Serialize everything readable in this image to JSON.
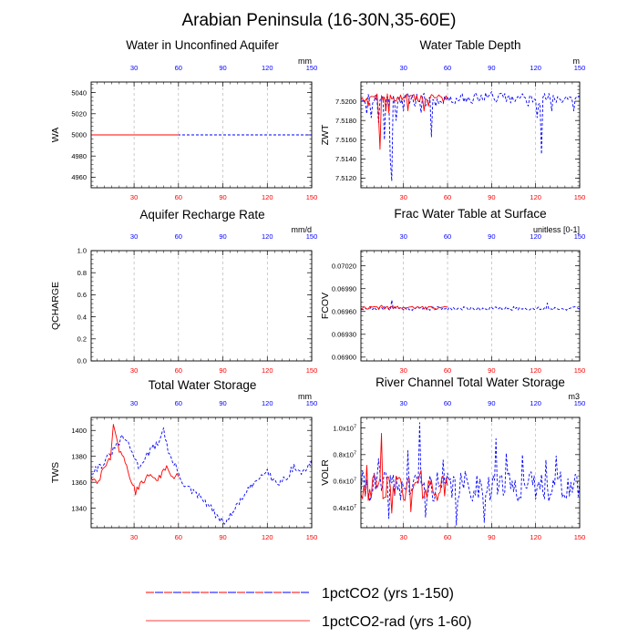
{
  "figure": {
    "title": "Arabian Peninsula (16-30N,35-60E)",
    "colors": {
      "series_a": "#0000ff",
      "series_b": "#ff0000",
      "grid": "#aaaaaa"
    }
  },
  "legend": {
    "items": [
      {
        "label": "1pctCO2 (yrs 1-150)",
        "style": "dashed-red-blue"
      },
      {
        "label": "1pctCO2-rad (yrs 1-60)",
        "style": "solid-red"
      }
    ]
  },
  "chart_data": [
    {
      "type": "line",
      "title": "Water in Unconfined Aquifer",
      "ylabel": "WA",
      "unit": "mm",
      "xlim": [
        1,
        150
      ],
      "ylim": [
        4950,
        5050
      ],
      "xticks": [
        30,
        60,
        90,
        120,
        150
      ],
      "yticks": [
        4960,
        4980,
        5000,
        5020,
        5040
      ],
      "ytick_labels": [
        "4960",
        "4980",
        "5000",
        "5020",
        "5040"
      ],
      "grid": "vertical-dashed",
      "series": [
        {
          "kind": "const",
          "value": 5000,
          "noise": 0,
          "start": 1,
          "end": 150,
          "color": "#0000ff",
          "dash": "3,2",
          "seed": 1
        },
        {
          "kind": "const",
          "value": 5000,
          "noise": 0,
          "start": 1,
          "end": 60,
          "color": "#ff0000",
          "dash": "",
          "seed": 2
        }
      ]
    },
    {
      "type": "line",
      "title": "Water Table Depth",
      "ylabel": "ZWT",
      "unit": "m",
      "xlim": [
        1,
        150
      ],
      "ylim": [
        7.511,
        7.522
      ],
      "xticks": [
        30,
        60,
        90,
        120,
        150
      ],
      "yticks": [
        7.512,
        7.514,
        7.516,
        7.518,
        7.52
      ],
      "ytick_labels": [
        "7.5120",
        "7.5140",
        "7.5160",
        "7.5180",
        "7.5200"
      ],
      "grid": "vertical-dashed",
      "series": [
        {
          "kind": "const",
          "value": 7.5203,
          "noise": 0.0006,
          "start": 1,
          "end": 150,
          "color": "#0000ff",
          "dash": "3,2",
          "seed": 11,
          "spikes": [
            [
              5,
              7.5187
            ],
            [
              8,
              7.5183
            ],
            [
              13,
              7.5178
            ],
            [
              17,
              7.516
            ],
            [
              21,
              7.514
            ],
            [
              22,
              7.5117
            ],
            [
              25,
              7.518
            ],
            [
              30,
              7.519
            ],
            [
              38,
              7.5195
            ],
            [
              42,
              7.5188
            ],
            [
              45,
              7.5195
            ],
            [
              49,
              7.5163
            ],
            [
              52,
              7.5195
            ],
            [
              55,
              7.52
            ],
            [
              62,
              7.5205
            ],
            [
              70,
              7.5208
            ],
            [
              80,
              7.5206
            ],
            [
              90,
              7.521
            ],
            [
              96,
              7.5208
            ],
            [
              102,
              7.5206
            ],
            [
              110,
              7.5205
            ],
            [
              115,
              7.5195
            ],
            [
              121,
              7.5183
            ],
            [
              124,
              7.5145
            ],
            [
              131,
              7.519
            ],
            [
              141,
              7.5205
            ],
            [
              146,
              7.519
            ]
          ]
        },
        {
          "kind": "const",
          "value": 7.5204,
          "noise": 0.0004,
          "start": 1,
          "end": 60,
          "color": "#ff0000",
          "dash": "",
          "seed": 12,
          "spikes": [
            [
              6,
              7.5195
            ],
            [
              10,
              7.5205
            ],
            [
              13,
              7.5185
            ],
            [
              14,
              7.515
            ],
            [
              18,
              7.519
            ],
            [
              20,
              7.5188
            ],
            [
              25,
              7.52
            ],
            [
              33,
              7.519
            ],
            [
              40,
              7.52
            ],
            [
              44,
              7.519
            ],
            [
              47,
              7.5195
            ],
            [
              55,
              7.5205
            ]
          ]
        }
      ]
    },
    {
      "type": "line",
      "title": "Aquifer Recharge Rate",
      "ylabel": "QCHARGE",
      "unit": "mm/d",
      "xlim": [
        1,
        150
      ],
      "ylim": [
        0,
        1
      ],
      "xticks": [
        30,
        60,
        90,
        120,
        150
      ],
      "yticks": [
        0,
        0.2,
        0.4,
        0.6,
        0.8,
        1
      ],
      "ytick_labels": [
        "0.0",
        "0.2",
        "0.4",
        "0.6",
        "0.8",
        "1.0"
      ],
      "grid": "vertical-dashed",
      "series": []
    },
    {
      "type": "line",
      "title": "Frac Water Table at Surface",
      "ylabel": "FCOV",
      "unit": "unitless [0-1]",
      "xlim": [
        1,
        150
      ],
      "ylim": [
        0.06895,
        0.0704
      ],
      "xticks": [
        30,
        60,
        90,
        120,
        150
      ],
      "yticks": [
        0.069,
        0.0693,
        0.0696,
        0.0699,
        0.0702
      ],
      "ytick_labels": [
        "0.06900",
        "0.06930",
        "0.06960",
        "0.06990",
        "0.07020"
      ],
      "grid": "vertical-dashed",
      "series": [
        {
          "kind": "const",
          "value": 0.06964,
          "noise": 2.5e-05,
          "start": 1,
          "end": 150,
          "color": "#0000ff",
          "dash": "3,2",
          "seed": 21,
          "spikes": [
            [
              22,
              0.06975
            ],
            [
              50,
              0.06966
            ],
            [
              70,
              0.06962
            ],
            [
              128,
              0.06971
            ]
          ]
        },
        {
          "kind": "const",
          "value": 0.06965,
          "noise": 2e-05,
          "start": 1,
          "end": 60,
          "color": "#ff0000",
          "dash": "",
          "seed": 22,
          "spikes": [
            [
              15,
              0.06968
            ],
            [
              45,
              0.06966
            ]
          ]
        }
      ]
    },
    {
      "type": "line",
      "title": "Total Water Storage",
      "ylabel": "TWS",
      "unit": "mm",
      "xlim": [
        1,
        150
      ],
      "ylim": [
        1325,
        1410
      ],
      "xticks": [
        30,
        60,
        90,
        120,
        150
      ],
      "yticks": [
        1340,
        1360,
        1380,
        1400
      ],
      "ytick_labels": [
        "1340",
        "1360",
        "1380",
        "1400"
      ],
      "grid": "vertical-dashed",
      "series": [
        {
          "kind": "anchors",
          "noise": 3,
          "start": 1,
          "end": 150,
          "color": "#0000ff",
          "dash": "3,2",
          "seed": 31,
          "anchors": [
            [
              1,
              1368
            ],
            [
              10,
              1375
            ],
            [
              18,
              1388
            ],
            [
              23,
              1395
            ],
            [
              28,
              1385
            ],
            [
              33,
              1372
            ],
            [
              38,
              1380
            ],
            [
              44,
              1388
            ],
            [
              47,
              1392
            ],
            [
              50,
              1402
            ],
            [
              53,
              1383
            ],
            [
              58,
              1372
            ],
            [
              64,
              1358
            ],
            [
              70,
              1352
            ],
            [
              76,
              1347
            ],
            [
              82,
              1340
            ],
            [
              88,
              1330
            ],
            [
              92,
              1330
            ],
            [
              96,
              1335
            ],
            [
              101,
              1345
            ],
            [
              106,
              1352
            ],
            [
              112,
              1360
            ],
            [
              117,
              1367
            ],
            [
              120,
              1372
            ],
            [
              123,
              1362
            ],
            [
              128,
              1360
            ],
            [
              133,
              1364
            ],
            [
              138,
              1372
            ],
            [
              143,
              1367
            ],
            [
              150,
              1375
            ]
          ]
        },
        {
          "kind": "anchors",
          "noise": 2.5,
          "start": 1,
          "end": 60,
          "color": "#ff0000",
          "dash": "",
          "seed": 32,
          "anchors": [
            [
              1,
              1365
            ],
            [
              5,
              1358
            ],
            [
              10,
              1372
            ],
            [
              14,
              1378
            ],
            [
              16,
              1405
            ],
            [
              19,
              1388
            ],
            [
              23,
              1378
            ],
            [
              28,
              1362
            ],
            [
              31,
              1352
            ],
            [
              35,
              1360
            ],
            [
              40,
              1366
            ],
            [
              45,
              1362
            ],
            [
              48,
              1365
            ],
            [
              52,
              1372
            ],
            [
              56,
              1363
            ],
            [
              60,
              1366
            ]
          ]
        }
      ]
    },
    {
      "type": "line",
      "title": "River Channel Total Water Storage",
      "ylabel": "VOLR",
      "unit": "m3",
      "xlim": [
        1,
        150
      ],
      "ylim": [
        2500000,
        10800000
      ],
      "xticks": [
        30,
        60,
        90,
        120,
        150
      ],
      "yticks": [
        4000000,
        6000000,
        8000000,
        10000000
      ],
      "ytick_labels": [
        "0.4",
        "0.6",
        "0.8",
        "1.0"
      ],
      "ytick_suffix": "x10",
      "ytick_exp": "7",
      "grid": "vertical-dashed",
      "series": [
        {
          "kind": "const",
          "value": 5600000,
          "noise": 1150000,
          "start": 1,
          "end": 150,
          "color": "#0000ff",
          "dash": "3,2",
          "seed": 41,
          "spikes": [
            [
              13,
              7700000
            ],
            [
              20,
              3200000
            ],
            [
              33,
              8300000
            ],
            [
              41,
              10400000
            ],
            [
              45,
              3300000
            ],
            [
              57,
              7600000
            ],
            [
              66,
              2700000
            ],
            [
              85,
              2900000
            ],
            [
              93,
              9200000
            ],
            [
              100,
              8100000
            ],
            [
              111,
              8000000
            ],
            [
              127,
              7600000
            ],
            [
              134,
              7900000
            ]
          ]
        },
        {
          "kind": "const",
          "value": 5500000,
          "noise": 1000000,
          "start": 1,
          "end": 60,
          "color": "#ff0000",
          "dash": "",
          "seed": 42,
          "spikes": [
            [
              5,
              7200000
            ],
            [
              15,
              9600000
            ],
            [
              18,
              4800000
            ],
            [
              22,
              3600000
            ],
            [
              27,
              6300000
            ],
            [
              35,
              3700000
            ],
            [
              42,
              6800000
            ]
          ]
        }
      ]
    }
  ]
}
